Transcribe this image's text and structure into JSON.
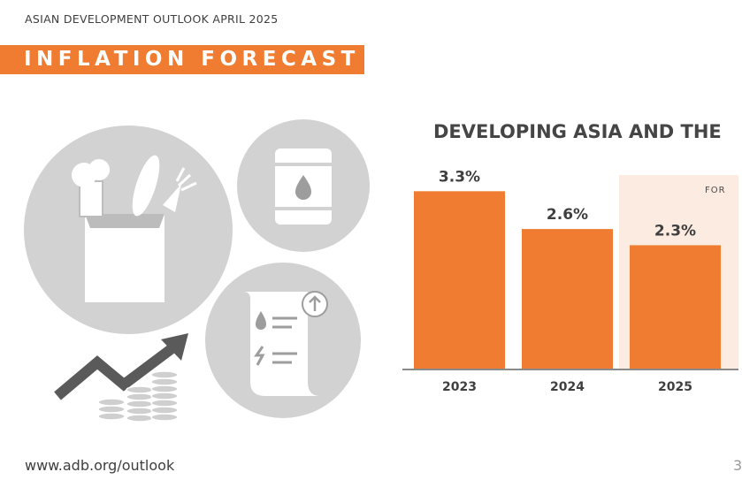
{
  "header": {
    "subtitle": "ASIAN DEVELOPMENT OUTLOOK APRIL 2025",
    "banner": "INFLATION FORECAST"
  },
  "icons": [
    "grocery-bag-icon",
    "oil-barrel-icon",
    "utility-bill-icon",
    "rising-arrow-coins-icon"
  ],
  "colors": {
    "accent": "#ef7c30",
    "forecast_bg": "#fcebe1",
    "icon_gray": "#d2d2d2",
    "icon_fg": "#9d9d9d"
  },
  "chart_data": {
    "type": "bar",
    "title": "DEVELOPING ASIA AND THE",
    "categories": [
      "2023",
      "2024",
      "2025"
    ],
    "values": [
      3.3,
      2.6,
      2.3
    ],
    "data_labels": [
      "3.3%",
      "2.6%",
      "2.3%"
    ],
    "forecast_label": "FOR",
    "forecast_categories": [
      "2025"
    ],
    "ylim": [
      0,
      3.6
    ],
    "grid": false,
    "xlabel": "",
    "ylabel": ""
  },
  "footer": {
    "url": "www.adb.org/outlook",
    "page": "3"
  }
}
